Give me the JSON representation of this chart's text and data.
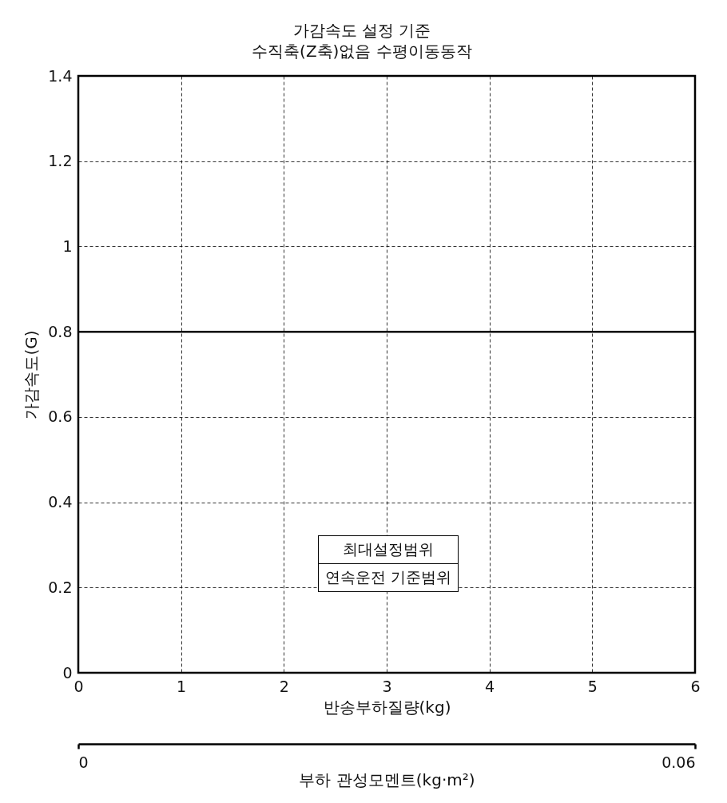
{
  "chart_data": {
    "type": "line",
    "title": "가감속도 설정 기준",
    "subtitle": "수직축(Z축)없음 수평이동동작",
    "xlabel": "반송부하질량(kg)",
    "ylabel": "가감속도(G)",
    "x2label": "부하 관성모멘트(kg·m²)",
    "annotations": [
      "최대설정범위",
      "연속운전 기준범위"
    ],
    "x": [
      0,
      6
    ],
    "series": [
      {
        "color": "#000000",
        "values": [
          0.8,
          0.8
        ]
      }
    ],
    "xlim": [
      0,
      6
    ],
    "xticks": [
      0,
      1,
      2,
      3,
      4,
      5,
      6
    ],
    "ylim": [
      0,
      1.4
    ],
    "yticks": [
      0,
      0.2,
      0.4,
      0.6,
      0.8,
      1,
      1.2,
      1.4
    ],
    "x2lim": [
      0,
      0.06
    ],
    "x2ticks": [
      0,
      0.06
    ],
    "grid": true,
    "marker": "none",
    "line_style": "solid"
  }
}
